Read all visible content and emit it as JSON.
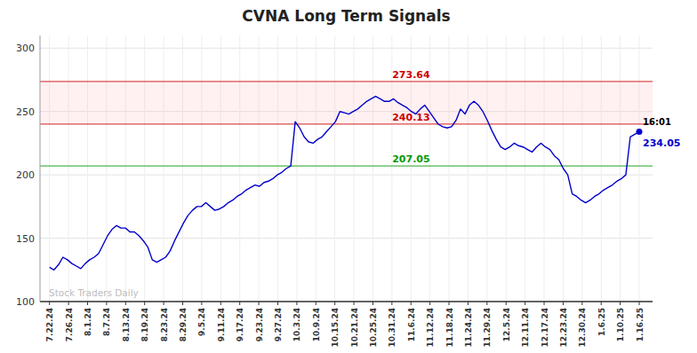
{
  "chart_data": {
    "type": "line",
    "title": "CVNA Long Term Signals",
    "color": "#0000cc",
    "grid": true,
    "xlim": [
      -0.5,
      31.7
    ],
    "xticks": [
      {
        "value": 0,
        "label": "7.22.24"
      },
      {
        "value": 1,
        "label": "7.26.24"
      },
      {
        "value": 2,
        "label": "8.1.24"
      },
      {
        "value": 3,
        "label": "8.7.24"
      },
      {
        "value": 4,
        "label": "8.13.24"
      },
      {
        "value": 5,
        "label": "8.19.24"
      },
      {
        "value": 6,
        "label": "8.23.24"
      },
      {
        "value": 7,
        "label": "8.29.24"
      },
      {
        "value": 8,
        "label": "9.5.24"
      },
      {
        "value": 9,
        "label": "9.11.24"
      },
      {
        "value": 10,
        "label": "9.17.24"
      },
      {
        "value": 11,
        "label": "9.23.24"
      },
      {
        "value": 12,
        "label": "9.27.24"
      },
      {
        "value": 13,
        "label": "10.3.24"
      },
      {
        "value": 14,
        "label": "10.9.24"
      },
      {
        "value": 15,
        "label": "10.15.24"
      },
      {
        "value": 16,
        "label": "10.21.24"
      },
      {
        "value": 17,
        "label": "10.25.24"
      },
      {
        "value": 18,
        "label": "10.31.24"
      },
      {
        "value": 19,
        "label": "11.6.24"
      },
      {
        "value": 20,
        "label": "11.12.24"
      },
      {
        "value": 21,
        "label": "11.18.24"
      },
      {
        "value": 22,
        "label": "11.24.24"
      },
      {
        "value": 23,
        "label": "11.29.24"
      },
      {
        "value": 24,
        "label": "12.5.24"
      },
      {
        "value": 25,
        "label": "12.11.24"
      },
      {
        "value": 26,
        "label": "12.17.24"
      },
      {
        "value": 27,
        "label": "12.23.24"
      },
      {
        "value": 28,
        "label": "12.30.24"
      },
      {
        "value": 29,
        "label": "1.6.25"
      },
      {
        "value": 30,
        "label": "1.10.25"
      },
      {
        "value": 31,
        "label": "1.16.25"
      }
    ],
    "ylim": [
      100,
      310
    ],
    "yticks": [
      100,
      150,
      200,
      250,
      300
    ],
    "x": [
      0,
      0.2348,
      0.4697,
      0.7045,
      0.9394,
      1.1742,
      1.4091,
      1.6439,
      1.8788,
      2.1136,
      2.3485,
      2.5833,
      2.8182,
      3.053,
      3.2879,
      3.5227,
      3.7576,
      3.9924,
      4.2273,
      4.4621,
      4.697,
      4.9318,
      5.1667,
      5.4015,
      5.6364,
      5.8712,
      6.1061,
      6.3409,
      6.5758,
      6.8106,
      7.0455,
      7.2803,
      7.5152,
      7.75,
      7.9848,
      8.2197,
      8.4545,
      8.6894,
      8.9242,
      9.1591,
      9.3939,
      9.6288,
      9.8636,
      10.0985,
      10.3333,
      10.5682,
      10.803,
      11.0379,
      11.2727,
      11.5076,
      11.7424,
      11.9773,
      12.2121,
      12.447,
      12.6818,
      12.9167,
      13.1515,
      13.3864,
      13.6212,
      13.8561,
      14.0909,
      14.3258,
      14.5606,
      14.7955,
      15.0303,
      15.2652,
      15.5,
      15.7348,
      15.9697,
      16.2045,
      16.4394,
      16.6742,
      16.9091,
      17.1439,
      17.3788,
      17.6136,
      17.8485,
      18.0833,
      18.3182,
      18.553,
      18.7879,
      19.0227,
      19.2576,
      19.4924,
      19.7273,
      19.9621,
      20.197,
      20.4318,
      20.6667,
      20.9015,
      21.1364,
      21.3712,
      21.6061,
      21.8409,
      22.0758,
      22.3106,
      22.5455,
      22.7803,
      23.0152,
      23.25,
      23.4848,
      23.7197,
      23.9545,
      24.1894,
      24.4242,
      24.6591,
      24.8939,
      25.1288,
      25.3636,
      25.5985,
      25.8333,
      26.0682,
      26.303,
      26.5379,
      26.7727,
      27.0076,
      27.2424,
      27.4773,
      27.7121,
      27.947,
      28.1818,
      28.4167,
      28.6515,
      28.8864,
      29.1212,
      29.3561,
      29.5909,
      29.8258,
      30.0606,
      30.2955,
      30.5303,
      30.7652,
      31
    ],
    "values": [
      127,
      125,
      129,
      135,
      133,
      130,
      128,
      126,
      130,
      133,
      135,
      138,
      145,
      152,
      157,
      160,
      158,
      158,
      155,
      155,
      152,
      148,
      143,
      133,
      131,
      133,
      135,
      140,
      148,
      155,
      162,
      168,
      172,
      175,
      175,
      178,
      175,
      172,
      173,
      175,
      178,
      180,
      183,
      185,
      188,
      190,
      192,
      191,
      194,
      195,
      197,
      200,
      202,
      205,
      207,
      242,
      237,
      230,
      226,
      225,
      228,
      230,
      234,
      238,
      242,
      250,
      249,
      248,
      250,
      252,
      255,
      258,
      260,
      262,
      260,
      258,
      258,
      260,
      257,
      255,
      253,
      250,
      248,
      252,
      255,
      250,
      245,
      240,
      238,
      237,
      238,
      243,
      252,
      248,
      255,
      258,
      255,
      250,
      243,
      235,
      228,
      222,
      220,
      222,
      225,
      223,
      222,
      220,
      218,
      222,
      225,
      222,
      220,
      215,
      212,
      205,
      200,
      185,
      183,
      180,
      178,
      180,
      183,
      185,
      188,
      190,
      192,
      195,
      197,
      200,
      230,
      232,
      234
    ],
    "band": [
      240.13,
      273.64
    ],
    "reference_lines": [
      {
        "value": 273.64,
        "label": "273.64",
        "color": "#cc0000"
      },
      {
        "value": 240.13,
        "label": "240.13",
        "color": "#cc0000"
      },
      {
        "value": 207.05,
        "label": "207.05",
        "color": "#009900"
      }
    ],
    "annotations": [
      {
        "text": "16:01",
        "color": "#000000"
      },
      {
        "text": "234.05",
        "color": "#0000cc"
      },
      {
        "text": "Stock Traders Daily",
        "color": "#aaaaaa"
      }
    ]
  }
}
